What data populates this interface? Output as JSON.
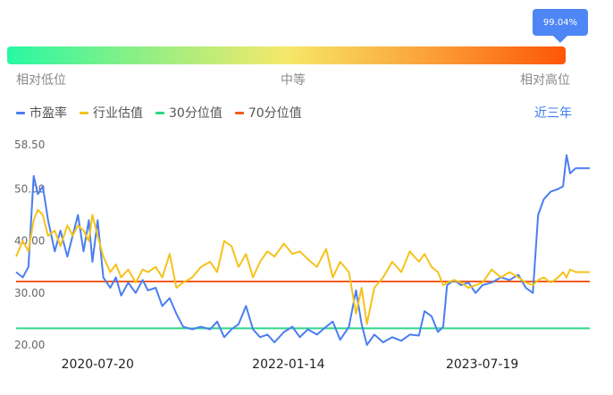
{
  "percentile": {
    "value_label": "99.04%",
    "value": 0.9904,
    "labels": {
      "low": "相对低位",
      "mid": "中等",
      "high": "相对高位"
    }
  },
  "legend": {
    "items": [
      {
        "label": "市盈率",
        "color": "#4a7ef0"
      },
      {
        "label": "行业估值",
        "color": "#f5c21b"
      },
      {
        "label": "30分位值",
        "color": "#2ed68a"
      },
      {
        "label": "70分位值",
        "color": "#f25a1c"
      }
    ]
  },
  "range_link": "近三年",
  "chart_data": {
    "type": "line",
    "yticks": [
      "58.50",
      "50.00",
      "40.00",
      "30.00",
      "20.00"
    ],
    "ylim": [
      20,
      58.5
    ],
    "xticks": [
      {
        "label": "2020-07-20",
        "date": "2020-07-20"
      },
      {
        "label": "2022-01-14",
        "date": "2022-01-14"
      },
      {
        "label": "2023-07-19",
        "date": "2023-07-19"
      }
    ],
    "xlim": [
      "2019-12-01",
      "2024-05-20"
    ],
    "series": [
      {
        "name": "市盈率",
        "color": "#4a7ef0",
        "points": [
          [
            "2019-12-01",
            34
          ],
          [
            "2019-12-20",
            33
          ],
          [
            "2020-01-05",
            35
          ],
          [
            "2020-01-20",
            52.5
          ],
          [
            "2020-02-01",
            49
          ],
          [
            "2020-02-15",
            50.5
          ],
          [
            "2020-03-01",
            44
          ],
          [
            "2020-03-20",
            38
          ],
          [
            "2020-04-05",
            42
          ],
          [
            "2020-04-25",
            37
          ],
          [
            "2020-05-10",
            41
          ],
          [
            "2020-05-25",
            45
          ],
          [
            "2020-06-10",
            38
          ],
          [
            "2020-06-25",
            44
          ],
          [
            "2020-07-05",
            36
          ],
          [
            "2020-07-20",
            44
          ],
          [
            "2020-08-05",
            33
          ],
          [
            "2020-08-25",
            31
          ],
          [
            "2020-09-10",
            33
          ],
          [
            "2020-09-25",
            29.5
          ],
          [
            "2020-10-15",
            32
          ],
          [
            "2020-11-05",
            30
          ],
          [
            "2020-11-25",
            32.5
          ],
          [
            "2020-12-10",
            30.5
          ],
          [
            "2021-01-01",
            31
          ],
          [
            "2021-01-20",
            27.5
          ],
          [
            "2021-02-10",
            29
          ],
          [
            "2021-03-01",
            26
          ],
          [
            "2021-03-20",
            23.5
          ],
          [
            "2021-04-15",
            23
          ],
          [
            "2021-05-10",
            23.5
          ],
          [
            "2021-06-05",
            23
          ],
          [
            "2021-06-25",
            24.5
          ],
          [
            "2021-07-15",
            21.5
          ],
          [
            "2021-08-05",
            23
          ],
          [
            "2021-08-25",
            24
          ],
          [
            "2021-09-15",
            27.5
          ],
          [
            "2021-10-05",
            23
          ],
          [
            "2021-10-25",
            21.5
          ],
          [
            "2021-11-15",
            22
          ],
          [
            "2021-12-05",
            20.5
          ],
          [
            "2022-01-01",
            22.5
          ],
          [
            "2022-01-25",
            23.5
          ],
          [
            "2022-02-15",
            21.5
          ],
          [
            "2022-03-10",
            23
          ],
          [
            "2022-04-05",
            22
          ],
          [
            "2022-05-01",
            23.5
          ],
          [
            "2022-05-20",
            24.5
          ],
          [
            "2022-06-10",
            21
          ],
          [
            "2022-07-05",
            23.5
          ],
          [
            "2022-07-25",
            30.5
          ],
          [
            "2022-08-10",
            24
          ],
          [
            "2022-08-25",
            20
          ],
          [
            "2022-09-15",
            22
          ],
          [
            "2022-10-10",
            20.5
          ],
          [
            "2022-11-05",
            21.5
          ],
          [
            "2022-12-01",
            20.8
          ],
          [
            "2022-12-25",
            22
          ],
          [
            "2023-01-20",
            21.8
          ],
          [
            "2023-02-05",
            26.5
          ],
          [
            "2023-02-25",
            25.5
          ],
          [
            "2023-03-15",
            22.5
          ],
          [
            "2023-03-30",
            23.5
          ],
          [
            "2023-04-10",
            31.5
          ],
          [
            "2023-04-30",
            32.5
          ],
          [
            "2023-05-20",
            31.5
          ],
          [
            "2023-06-10",
            32
          ],
          [
            "2023-06-30",
            30
          ],
          [
            "2023-07-20",
            31.5
          ],
          [
            "2023-08-15",
            32
          ],
          [
            "2023-09-10",
            33
          ],
          [
            "2023-10-05",
            32.5
          ],
          [
            "2023-10-30",
            33.5
          ],
          [
            "2023-11-20",
            31
          ],
          [
            "2023-12-10",
            30
          ],
          [
            "2023-12-25",
            45
          ],
          [
            "2024-01-10",
            48
          ],
          [
            "2024-01-30",
            49.5
          ],
          [
            "2024-02-20",
            50
          ],
          [
            "2024-03-05",
            50.5
          ],
          [
            "2024-03-15",
            56.5
          ],
          [
            "2024-03-25",
            53
          ],
          [
            "2024-04-10",
            54
          ],
          [
            "2024-05-20",
            54
          ]
        ]
      },
      {
        "name": "行业估值",
        "color": "#f5c21b",
        "points": [
          [
            "2019-12-01",
            37
          ],
          [
            "2019-12-20",
            40
          ],
          [
            "2020-01-05",
            38
          ],
          [
            "2020-01-20",
            44
          ],
          [
            "2020-02-01",
            46
          ],
          [
            "2020-02-15",
            45
          ],
          [
            "2020-03-01",
            41
          ],
          [
            "2020-03-20",
            42
          ],
          [
            "2020-04-05",
            39
          ],
          [
            "2020-04-25",
            43
          ],
          [
            "2020-05-10",
            41
          ],
          [
            "2020-05-25",
            43
          ],
          [
            "2020-06-10",
            42
          ],
          [
            "2020-06-25",
            40
          ],
          [
            "2020-07-05",
            45
          ],
          [
            "2020-07-20",
            41
          ],
          [
            "2020-08-05",
            37
          ],
          [
            "2020-08-25",
            34
          ],
          [
            "2020-09-10",
            35.5
          ],
          [
            "2020-09-25",
            33
          ],
          [
            "2020-10-15",
            34.5
          ],
          [
            "2020-11-05",
            32
          ],
          [
            "2020-11-25",
            34.5
          ],
          [
            "2020-12-10",
            34
          ],
          [
            "2021-01-01",
            35
          ],
          [
            "2021-01-20",
            33
          ],
          [
            "2021-02-10",
            37.5
          ],
          [
            "2021-03-01",
            31
          ],
          [
            "2021-03-20",
            32
          ],
          [
            "2021-04-15",
            33
          ],
          [
            "2021-05-10",
            35
          ],
          [
            "2021-06-05",
            36
          ],
          [
            "2021-06-25",
            34
          ],
          [
            "2021-07-15",
            40
          ],
          [
            "2021-08-05",
            39
          ],
          [
            "2021-08-25",
            35
          ],
          [
            "2021-09-15",
            37.5
          ],
          [
            "2021-10-05",
            33
          ],
          [
            "2021-10-25",
            36
          ],
          [
            "2021-11-15",
            38
          ],
          [
            "2021-12-05",
            37
          ],
          [
            "2022-01-01",
            39.5
          ],
          [
            "2022-01-25",
            37.5
          ],
          [
            "2022-02-15",
            38
          ],
          [
            "2022-03-10",
            36.5
          ],
          [
            "2022-04-05",
            35
          ],
          [
            "2022-05-01",
            38.5
          ],
          [
            "2022-05-20",
            33
          ],
          [
            "2022-06-10",
            36
          ],
          [
            "2022-07-05",
            34
          ],
          [
            "2022-07-25",
            26
          ],
          [
            "2022-08-10",
            31
          ],
          [
            "2022-08-25",
            24
          ],
          [
            "2022-09-15",
            31
          ],
          [
            "2022-10-10",
            33
          ],
          [
            "2022-11-05",
            36
          ],
          [
            "2022-12-01",
            34
          ],
          [
            "2022-12-25",
            38
          ],
          [
            "2023-01-20",
            36
          ],
          [
            "2023-02-05",
            37.5
          ],
          [
            "2023-02-25",
            35
          ],
          [
            "2023-03-15",
            34
          ],
          [
            "2023-03-30",
            31.5
          ],
          [
            "2023-04-10",
            32
          ],
          [
            "2023-04-30",
            32.5
          ],
          [
            "2023-05-20",
            32
          ],
          [
            "2023-06-10",
            31
          ],
          [
            "2023-06-30",
            31.5
          ],
          [
            "2023-07-20",
            32
          ],
          [
            "2023-08-15",
            34.5
          ],
          [
            "2023-09-10",
            33
          ],
          [
            "2023-10-05",
            34
          ],
          [
            "2023-10-30",
            33
          ],
          [
            "2023-11-20",
            32
          ],
          [
            "2023-12-10",
            31.5
          ],
          [
            "2023-12-25",
            32.5
          ],
          [
            "2024-01-10",
            33
          ],
          [
            "2024-01-30",
            32
          ],
          [
            "2024-02-20",
            33
          ],
          [
            "2024-03-05",
            34
          ],
          [
            "2024-03-15",
            33
          ],
          [
            "2024-03-25",
            34.5
          ],
          [
            "2024-04-10",
            34
          ],
          [
            "2024-05-20",
            34
          ]
        ]
      }
    ],
    "reference_lines": [
      {
        "name": "30分位值",
        "value": 23.2,
        "color": "#2ed68a"
      },
      {
        "name": "70分位值",
        "value": 32.2,
        "color": "#f25a1c"
      }
    ]
  }
}
